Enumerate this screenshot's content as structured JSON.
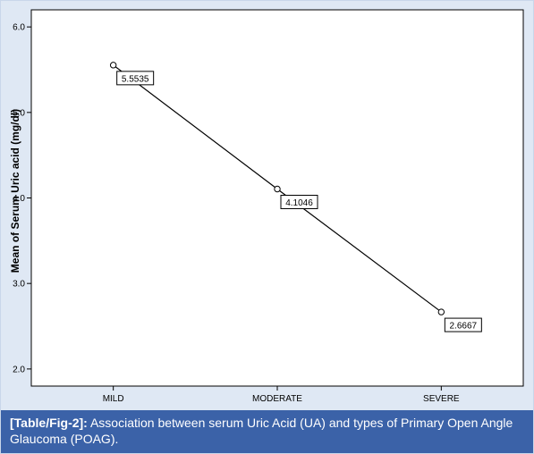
{
  "chart_data": {
    "type": "line",
    "title": "",
    "xlabel": "",
    "ylabel": "Mean of Serum Uric acid (mg/dl)",
    "categories": [
      "MILD",
      "MODERATE",
      "SEVERE"
    ],
    "values": [
      5.5535,
      4.1046,
      2.6667
    ],
    "data_labels": [
      "5.5535",
      "4.1046",
      "2.6667"
    ],
    "ylim": [
      1.8,
      6.2
    ],
    "yticks": [
      2.0,
      3.0,
      4.0,
      5.0,
      6.0
    ],
    "ytick_labels": [
      "2.0",
      "3.0",
      "4.0",
      "5.0",
      "6.0"
    ],
    "grid": false,
    "marker": "open-circle",
    "colors": {
      "line": "#000000",
      "plot_bg": "#ffffff",
      "outer_bg": "#dfe8f4"
    }
  },
  "caption": {
    "label": "[Table/Fig-2]:",
    "text": " Association between serum Uric Acid (UA) and types of Primary Open Angle Glaucoma (POAG).",
    "bg_color": "#3b62a8"
  }
}
